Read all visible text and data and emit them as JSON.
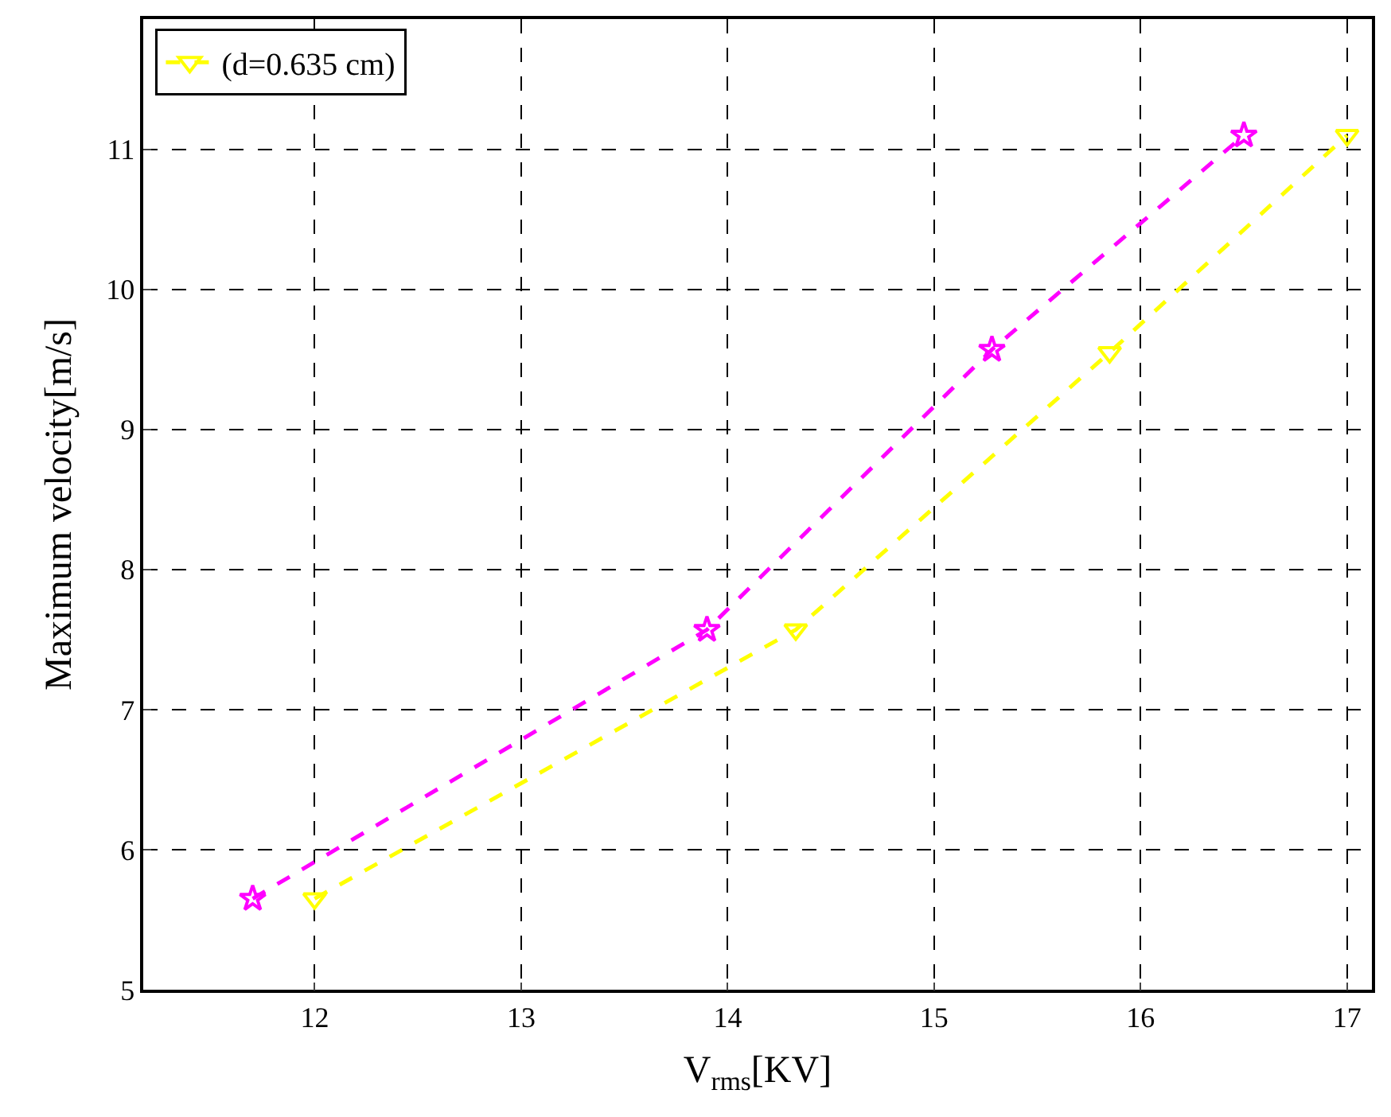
{
  "chart_data": {
    "type": "line",
    "xlabel": "V$_{rms}$[KV]",
    "ylabel": "Maximum velocity[m/s]",
    "xlim": [
      11.17,
      17.12
    ],
    "xticks": [
      12,
      13,
      14,
      15,
      16,
      17
    ],
    "ylim": [
      5,
      11.93
    ],
    "yticks": [
      5,
      6,
      7,
      8,
      9,
      10,
      11
    ],
    "grid": true,
    "legend": "top left",
    "line_style": "dashed",
    "series": [
      {
        "name": "(d=0.635 cm)",
        "color": "#ffff00",
        "marker": "triangle",
        "x": [
          12.0,
          14.33,
          15.85,
          17.0
        ],
        "values": [
          5.65,
          7.57,
          9.55,
          11.1
        ]
      },
      {
        "color": "#ff00ff",
        "marker": "star",
        "x": [
          11.7,
          13.9,
          15.28,
          16.5
        ],
        "values": [
          5.65,
          7.57,
          9.57,
          11.1
        ]
      }
    ]
  }
}
